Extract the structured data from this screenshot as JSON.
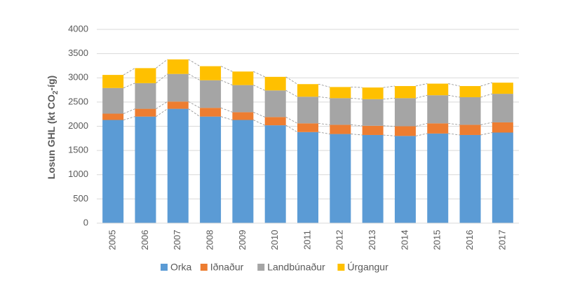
{
  "chart_data": {
    "type": "stacked_bar",
    "y_label_parts": [
      "Losun GHL (kt CO",
      "2",
      "-íg)"
    ],
    "categories": [
      "2005",
      "2006",
      "2007",
      "2008",
      "2009",
      "2010",
      "2011",
      "2012",
      "2013",
      "2014",
      "2015",
      "2016",
      "2017"
    ],
    "series": [
      {
        "name": "Orka",
        "color": "#5b9bd5",
        "values": [
          2130,
          2200,
          2360,
          2200,
          2130,
          2020,
          1880,
          1840,
          1820,
          1800,
          1850,
          1820,
          1870
        ]
      },
      {
        "name": "Iðnaður",
        "color": "#ed7d31",
        "values": [
          130,
          160,
          150,
          180,
          160,
          170,
          180,
          190,
          190,
          200,
          210,
          210,
          210
        ]
      },
      {
        "name": "Landbúnaður",
        "color": "#a5a5a5",
        "values": [
          530,
          530,
          570,
          570,
          560,
          550,
          550,
          550,
          550,
          580,
          580,
          570,
          590
        ]
      },
      {
        "name": "Úrgangur",
        "color": "#ffc000",
        "values": [
          270,
          310,
          300,
          290,
          280,
          280,
          260,
          230,
          240,
          250,
          240,
          230,
          230
        ]
      }
    ],
    "ylim": [
      0,
      4000
    ],
    "yticks": [
      0,
      500,
      1000,
      1500,
      2000,
      2500,
      3000,
      3500,
      4000
    ],
    "grid": true,
    "legend": "bottom",
    "connector_lines": true
  }
}
